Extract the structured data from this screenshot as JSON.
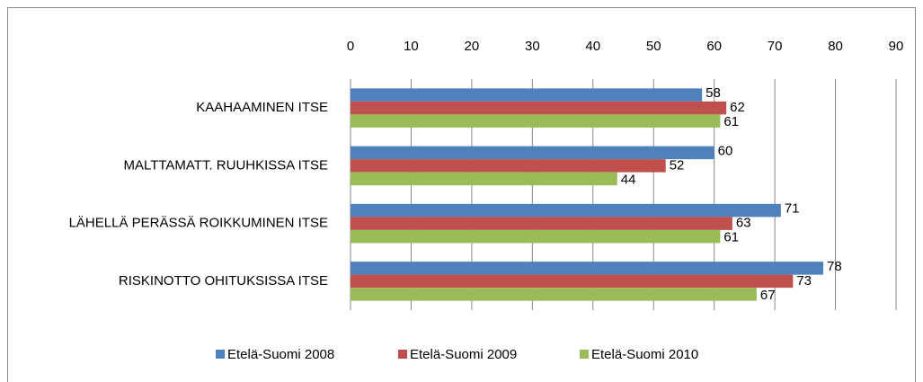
{
  "chart_data": {
    "type": "bar",
    "orientation": "horizontal",
    "categories": [
      "KAAHAAMINEN ITSE",
      "MALTTAMATT. RUUHKISSA ITSE",
      "LÄHELLÄ PERÄSSÄ ROIKKUMINEN ITSE",
      "RISKINOTTO OHITUKSISSA ITSE"
    ],
    "series": [
      {
        "name": "Etelä-Suomi 2008",
        "color": "#4f81bd",
        "values": [
          58,
          60,
          71,
          78
        ]
      },
      {
        "name": "Etelä-Suomi 2009",
        "color": "#c0504d",
        "values": [
          62,
          52,
          63,
          73
        ]
      },
      {
        "name": "Etelä-Suomi 2010",
        "color": "#9bbb59",
        "values": [
          61,
          44,
          61,
          67
        ]
      }
    ],
    "xlim": [
      0,
      90
    ],
    "xticks": [
      0,
      10,
      20,
      30,
      40,
      50,
      60,
      70,
      80,
      90
    ],
    "grid": true,
    "legend": "bottom"
  }
}
